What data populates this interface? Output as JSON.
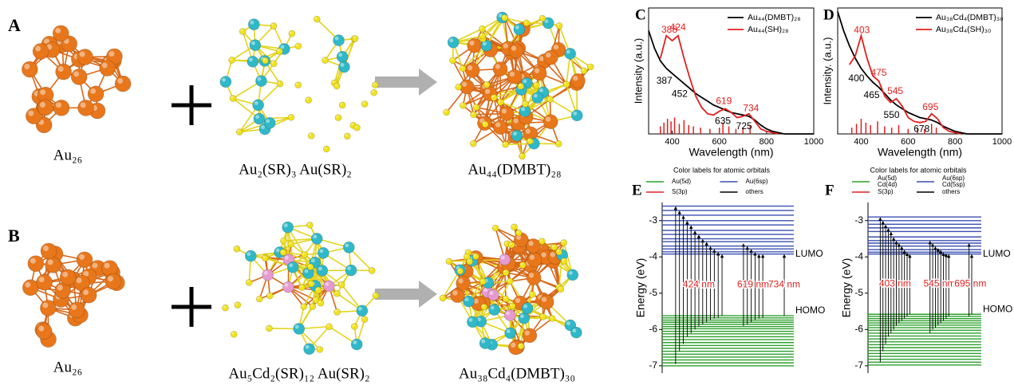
{
  "structures": [
    {
      "letter": "A",
      "core": "Au₂₆",
      "ligands": "Au₂(SR)₃ Au(SR)₂",
      "product": "Au₄₄(DMBT)₂₈"
    },
    {
      "letter": "B",
      "core": "Au₂₆",
      "ligands": "Au₅Cd₂(SR)₁₂ Au(SR)₂",
      "product": "Au₃₈Cd₄(DMBT)₃₀"
    }
  ],
  "chart_data": [
    {
      "type": "line",
      "letter": "C",
      "xlabel": "Wavelength (nm)",
      "ylabel": "Intensity (a.u.)",
      "xlim": [
        300,
        1000
      ],
      "ylim": [
        0,
        1
      ],
      "xticks": [
        400,
        600,
        800,
        1000
      ],
      "legend": "upper right",
      "x": [
        300,
        325,
        350,
        375,
        400,
        425,
        450,
        475,
        500,
        525,
        550,
        575,
        600,
        625,
        650,
        675,
        700,
        725,
        750,
        775,
        800,
        825,
        850,
        875,
        900,
        925,
        950,
        975,
        1000
      ],
      "series": [
        {
          "name": "Au₄₄(DMBT)₂₈",
          "color": "#000000",
          "values": [
            0.82,
            0.68,
            0.58,
            0.52,
            0.48,
            0.44,
            0.4,
            0.36,
            0.32,
            0.29,
            0.26,
            0.23,
            0.21,
            0.19,
            0.17,
            0.16,
            0.15,
            0.14,
            0.11,
            0.07,
            0.04,
            0.02,
            0.01,
            0,
            0,
            0,
            0,
            0,
            0
          ]
        },
        {
          "name": "Au₄₄(SH)₂₈",
          "color": "#e02020",
          "values": [
            null,
            null,
            0.6,
            0.78,
            0.74,
            0.78,
            0.6,
            0.44,
            0.3,
            0.21,
            0.16,
            0.15,
            0.18,
            0.2,
            0.17,
            0.13,
            0.14,
            0.16,
            0.1,
            0.04,
            0.02,
            0.01,
            0,
            null,
            null,
            null,
            null,
            null,
            null
          ]
        }
      ],
      "sticks": {
        "color": "#e02020",
        "x": [
          350,
          365,
          380,
          395,
          410,
          430,
          450,
          470,
          490,
          520,
          560,
          600,
          615,
          640,
          670,
          700,
          730
        ],
        "values": [
          0.06,
          0.09,
          0.12,
          0.1,
          0.13,
          0.08,
          0.11,
          0.07,
          0.06,
          0.05,
          0.04,
          0.05,
          0.09,
          0.06,
          0.04,
          0.05,
          0.07
        ]
      },
      "annotations": [
        {
          "x": 388,
          "color": "#e02020"
        },
        {
          "x": 424,
          "color": "#e02020"
        },
        {
          "x": 619,
          "color": "#e02020"
        },
        {
          "x": 734,
          "color": "#e02020"
        },
        {
          "x": 387,
          "color": "#000000"
        },
        {
          "x": 452,
          "color": "#000000"
        },
        {
          "x": 635,
          "color": "#000000"
        },
        {
          "x": 725,
          "color": "#000000"
        }
      ]
    },
    {
      "type": "line",
      "letter": "D",
      "xlabel": "Wavelength (nm)",
      "ylabel": "Intensity. (a.u.)",
      "xlim": [
        300,
        1000
      ],
      "ylim": [
        0,
        1
      ],
      "xticks": [
        400,
        600,
        800,
        1000
      ],
      "legend": "upper right",
      "x": [
        300,
        325,
        350,
        375,
        400,
        425,
        450,
        475,
        500,
        525,
        550,
        575,
        600,
        625,
        650,
        675,
        700,
        725,
        750,
        775,
        800,
        825,
        850,
        875,
        900,
        925,
        950,
        975,
        1000
      ],
      "series": [
        {
          "name": "Au₃₈Cd₄(DMBT)₃₀",
          "color": "#000000",
          "values": [
            0.97,
            0.82,
            0.7,
            0.6,
            0.52,
            0.46,
            0.41,
            0.37,
            0.32,
            0.27,
            0.23,
            0.2,
            0.17,
            0.15,
            0.13,
            0.12,
            0.11,
            0.09,
            0.06,
            0.04,
            0.02,
            0.01,
            0,
            0,
            0,
            0,
            0,
            0,
            0
          ]
        },
        {
          "name": "Au₃₈Cd₄(SH)₃₀",
          "color": "#e02020",
          "values": [
            null,
            null,
            0.55,
            0.62,
            0.78,
            0.6,
            0.46,
            0.42,
            0.3,
            0.25,
            0.28,
            0.22,
            0.13,
            0.1,
            0.09,
            0.1,
            0.16,
            0.12,
            0.05,
            0.02,
            0.01,
            0,
            null,
            null,
            null,
            null,
            null,
            null,
            null
          ]
        }
      ],
      "sticks": {
        "color": "#e02020",
        "x": [
          360,
          380,
          400,
          420,
          440,
          470,
          500,
          530,
          560,
          600,
          640,
          670,
          700,
          720
        ],
        "values": [
          0.05,
          0.08,
          0.12,
          0.09,
          0.07,
          0.1,
          0.06,
          0.05,
          0.07,
          0.04,
          0.05,
          0.04,
          0.08,
          0.05
        ]
      },
      "annotations": [
        {
          "x": 403,
          "color": "#e02020"
        },
        {
          "x": 475,
          "color": "#e02020"
        },
        {
          "x": 545,
          "color": "#e02020"
        },
        {
          "x": 695,
          "color": "#e02020"
        },
        {
          "x": 400,
          "color": "#000000"
        },
        {
          "x": 465,
          "color": "#000000"
        },
        {
          "x": 550,
          "color": "#000000"
        },
        {
          "x": 678,
          "color": "#000000"
        }
      ]
    },
    {
      "type": "energy_levels",
      "letter": "E",
      "ylabel": "Energy (eV)",
      "ylim": [
        -7.2,
        -2.5
      ],
      "yticks": [
        -3,
        -4,
        -5,
        -6,
        -7
      ],
      "legend_title": "Color labels for atomic orbitals",
      "legend": [
        {
          "label": [
            "Au(5d)"
          ],
          "color": "#2ca02c"
        },
        {
          "label": [
            "Au(6sp)"
          ],
          "color": "#3a4fb0"
        },
        {
          "label": [
            "S(3p)"
          ],
          "color": "#e02020"
        },
        {
          "label": [
            "others"
          ],
          "color": "#000000"
        }
      ],
      "unoccupied": {
        "color": "#3a4fb0",
        "values": [
          -2.6,
          -2.72,
          -2.85,
          -3.0,
          -3.12,
          -3.27,
          -3.38,
          -3.5,
          -3.58,
          -3.7,
          -3.78,
          -3.86,
          -3.92
        ]
      },
      "occupied": {
        "color": "#2ca02c",
        "values": [
          -5.62,
          -5.68,
          -5.74,
          -5.8,
          -5.86,
          -5.92,
          -5.98,
          -6.05,
          -6.12,
          -6.2,
          -6.28,
          -6.36,
          -6.44,
          -6.52,
          -6.6,
          -6.68,
          -6.76,
          -6.84,
          -6.92,
          -7.0
        ]
      },
      "lumo_label": "LUMO",
      "homo_label": "HOMO",
      "groups": [
        {
          "label": "424 nm",
          "transitions": [
            [
              -6.95,
              -2.6
            ],
            [
              -6.6,
              -2.72
            ],
            [
              -6.4,
              -2.85
            ],
            [
              -6.2,
              -3.0
            ],
            [
              -6.1,
              -3.12
            ],
            [
              -6.0,
              -3.27
            ],
            [
              -5.92,
              -3.38
            ],
            [
              -5.86,
              -3.5
            ],
            [
              -5.8,
              -3.58
            ],
            [
              -5.74,
              -3.7
            ],
            [
              -5.7,
              -3.78
            ],
            [
              -5.68,
              -3.86
            ],
            [
              -5.62,
              -3.92
            ]
          ]
        },
        {
          "label": "619 nm",
          "transitions": [
            [
              -5.9,
              -3.62
            ],
            [
              -5.86,
              -3.7
            ],
            [
              -5.8,
              -3.78
            ],
            [
              -5.74,
              -3.86
            ],
            [
              -5.7,
              -3.92
            ],
            [
              -5.68,
              -3.92
            ]
          ]
        },
        {
          "label": "734 nm",
          "transitions": [
            [
              -5.62,
              -3.92
            ]
          ]
        }
      ]
    },
    {
      "type": "energy_levels",
      "letter": "F",
      "ylabel": "Energy (eV)",
      "ylim": [
        -7.2,
        -2.5
      ],
      "yticks": [
        -3,
        -4,
        -5,
        -6,
        -7
      ],
      "legend_title": "Color labels for atomic orbitals",
      "legend": [
        {
          "label": [
            "Au(5d)",
            "Cd(4d)"
          ],
          "color": "#2ca02c"
        },
        {
          "label": [
            "Au(6sp)",
            "Cd(5sp)"
          ],
          "color": "#3a4fb0"
        },
        {
          "label": [
            "S(3p)"
          ],
          "color": "#e02020"
        },
        {
          "label": [
            "others"
          ],
          "color": "#000000"
        }
      ],
      "unoccupied": {
        "color": "#3a4fb0",
        "values": [
          -2.9,
          -3.0,
          -3.1,
          -3.2,
          -3.3,
          -3.45,
          -3.55,
          -3.62,
          -3.7,
          -3.8,
          -3.87,
          -3.92
        ]
      },
      "occupied": {
        "color": "#2ca02c",
        "values": [
          -5.58,
          -5.64,
          -5.7,
          -5.76,
          -5.82,
          -5.88,
          -5.95,
          -6.02,
          -6.1,
          -6.18,
          -6.26,
          -6.34,
          -6.42,
          -6.5,
          -6.58,
          -6.66,
          -6.74,
          -6.82,
          -6.9,
          -6.98
        ]
      },
      "lumo_label": "LUMO",
      "homo_label": "HOMO",
      "groups": [
        {
          "label": "403 nm",
          "transitions": [
            [
              -6.9,
              -2.9
            ],
            [
              -6.6,
              -3.0
            ],
            [
              -6.4,
              -3.1
            ],
            [
              -6.2,
              -3.2
            ],
            [
              -6.1,
              -3.3
            ],
            [
              -6.0,
              -3.45
            ],
            [
              -5.9,
              -3.55
            ],
            [
              -5.82,
              -3.62
            ],
            [
              -5.76,
              -3.7
            ],
            [
              -5.7,
              -3.8
            ],
            [
              -5.64,
              -3.87
            ],
            [
              -5.58,
              -3.92
            ]
          ]
        },
        {
          "label": "545 nm",
          "transitions": [
            [
              -6.1,
              -3.55
            ],
            [
              -6.0,
              -3.62
            ],
            [
              -5.95,
              -3.7
            ],
            [
              -5.88,
              -3.75
            ],
            [
              -5.82,
              -3.8
            ],
            [
              -5.76,
              -3.87
            ],
            [
              -5.7,
              -3.9
            ],
            [
              -5.64,
              -3.92
            ]
          ]
        },
        {
          "label": "695 nm",
          "transitions": [
            [
              -5.64,
              -3.62
            ],
            [
              -5.58,
              -3.92
            ]
          ]
        }
      ]
    }
  ]
}
